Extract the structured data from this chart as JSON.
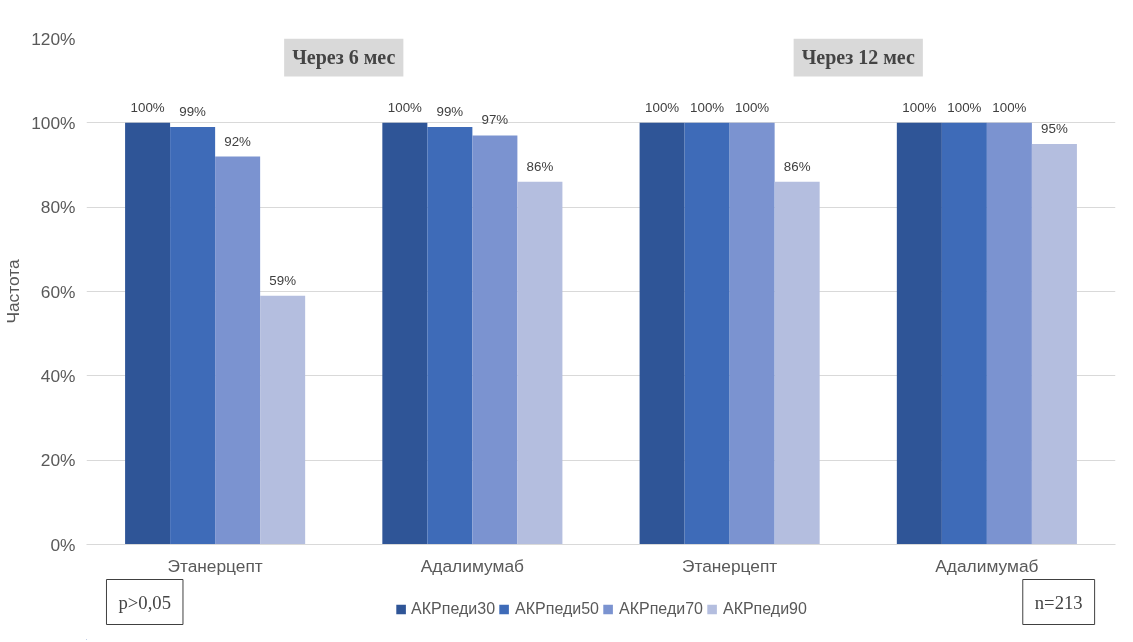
{
  "chart_data": {
    "type": "bar",
    "ylabel": "Частота",
    "categories": [
      "Этанерцепт",
      "Адалимумаб",
      "Этанерцепт",
      "Адалимумаб"
    ],
    "series": [
      {
        "name": "АКРпеди30",
        "color": "#2f5597",
        "values": [
          100,
          100,
          100,
          100
        ],
        "value_labels": [
          "100%",
          "100%",
          "100%",
          "100%"
        ]
      },
      {
        "name": "АКРпеди50",
        "color": "#3e6bb8",
        "values": [
          99,
          99,
          100,
          100
        ],
        "value_labels": [
          "99%",
          "99%",
          "100%",
          "100%"
        ]
      },
      {
        "name": "АКРпеди70",
        "color": "#7b93d0",
        "values": [
          92,
          97,
          100,
          100
        ],
        "value_labels": [
          "92%",
          "97%",
          "100%",
          "100%"
        ]
      },
      {
        "name": "АКРпеди90",
        "color": "#b4bedf",
        "values": [
          59,
          86,
          86,
          95
        ],
        "value_labels": [
          "59%",
          "86%",
          "86%",
          "95%"
        ]
      }
    ],
    "ylim": [
      0,
      120
    ],
    "yticks": [
      {
        "value": 0,
        "label": "0%"
      },
      {
        "value": 20,
        "label": "20%"
      },
      {
        "value": 40,
        "label": "40%"
      },
      {
        "value": 60,
        "label": "60%"
      },
      {
        "value": 80,
        "label": "80%"
      },
      {
        "value": 100,
        "label": "100%"
      },
      {
        "value": 120,
        "label": "120%"
      }
    ],
    "data_labels": true,
    "grid": "y",
    "legend": "bottom",
    "annotations": [
      "Через 6 мес",
      "Через 12 мес",
      "p>0,05",
      "n=213"
    ]
  }
}
